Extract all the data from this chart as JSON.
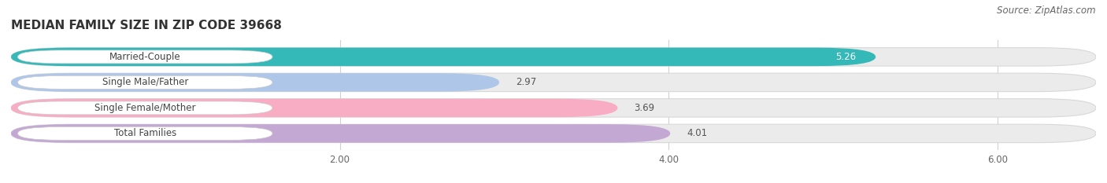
{
  "title": "MEDIAN FAMILY SIZE IN ZIP CODE 39668",
  "source": "Source: ZipAtlas.com",
  "categories": [
    "Married-Couple",
    "Single Male/Father",
    "Single Female/Mother",
    "Total Families"
  ],
  "values": [
    5.26,
    2.97,
    3.69,
    4.01
  ],
  "bar_colors": [
    "#35b8b8",
    "#aec6e8",
    "#f8adc4",
    "#c4a8d4"
  ],
  "bar_bg_color": "#ebebeb",
  "bar_border_color": "#d8d8d8",
  "xlim": [
    0,
    6.6
  ],
  "xstart": 0.0,
  "xticks": [
    2.0,
    4.0,
    6.0
  ],
  "xtick_labels": [
    "2.00",
    "4.00",
    "6.00"
  ],
  "title_fontsize": 11,
  "label_fontsize": 8.5,
  "value_fontsize": 8.5,
  "source_fontsize": 8.5,
  "bar_height": 0.72,
  "background_color": "#ffffff",
  "grid_color": "#d0d0d0",
  "text_color": "#444444",
  "label_pill_color": "#ffffff",
  "value_inside_color": "#ffffff",
  "value_outside_color": "#555555"
}
